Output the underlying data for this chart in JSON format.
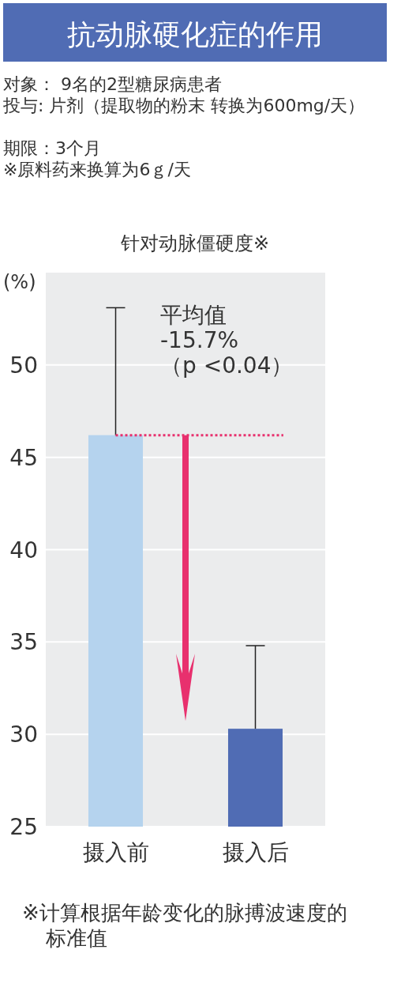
{
  "chart_data": {
    "type": "bar",
    "title": "抗动脉硬化症的作用",
    "subtitle": "对象：  9名的2型糖尿病患者",
    "ylabel": "(%)",
    "categories": [
      "摄入前",
      "摄入后"
    ],
    "values": [
      46.2,
      30.3
    ],
    "colors": [
      "#b5d3ee",
      "#506cb4"
    ],
    "errors": [
      [
        46.2,
        53.1
      ],
      [
        30.3,
        34.8
      ]
    ],
    "ylim": [
      25,
      55
    ],
    "yticks": [
      25,
      30,
      35,
      40,
      45,
      50
    ],
    "grid": "y",
    "ref_lines": [
      {
        "axis": "y",
        "value": 46.2,
        "color": "#e8306e",
        "line_style": "dotted"
      }
    ],
    "annotations": [
      "针对动脉僵硬度※",
      "平均值\n-15.7%\n（p <0.04）",
      "※计算根据年龄变化的脉搏波速度的标准值",
      "投与: 片剂（提取物的粉末 转换为600mg/天）",
      "期限：3个月",
      "※原料药来换算为6ｇ/天"
    ]
  }
}
